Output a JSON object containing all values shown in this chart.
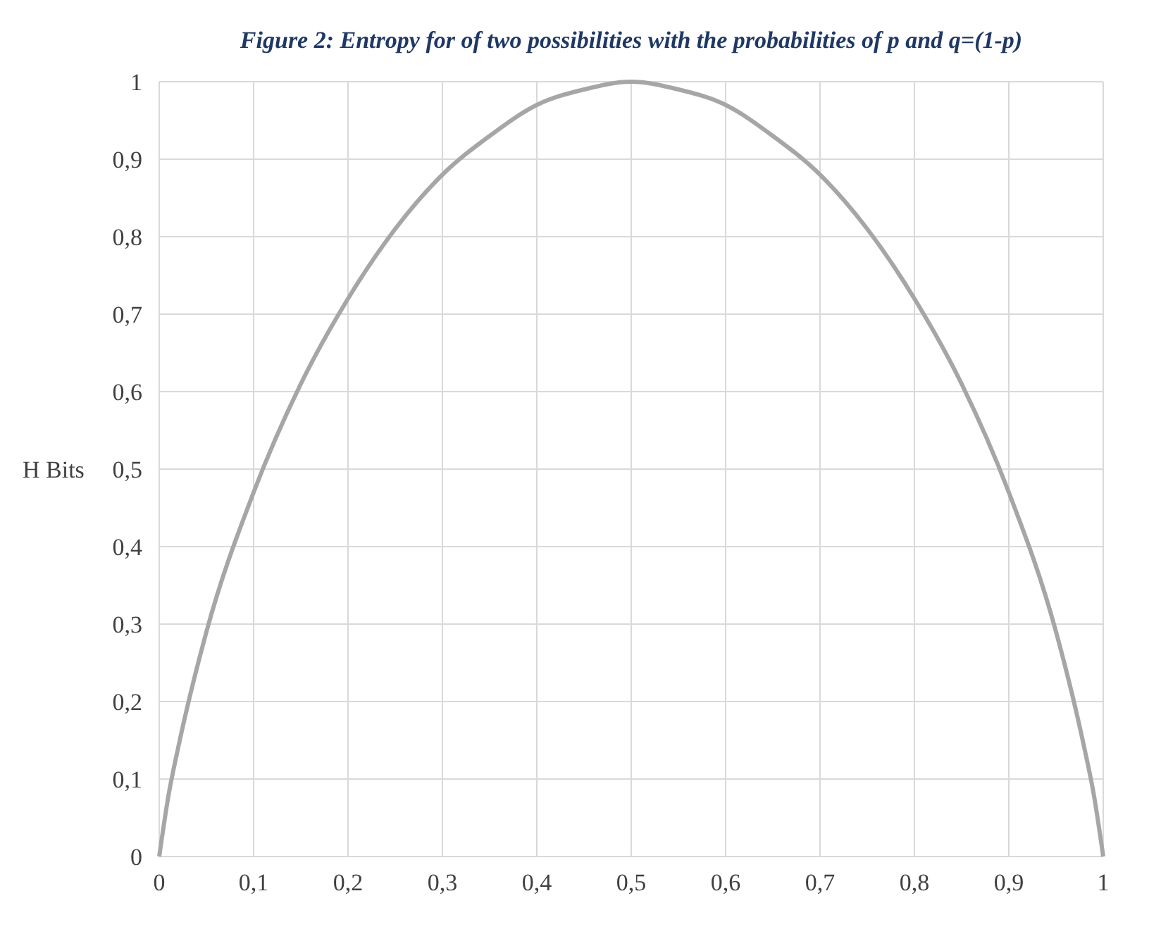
{
  "chart_data": {
    "type": "line",
    "title": "Figure 2: Entropy for of two possibilities with the probabilities of p and q=(1-p)",
    "ylabel": "H Bits",
    "x": [
      0,
      0.01,
      0.02,
      0.05,
      0.1,
      0.15,
      0.2,
      0.25,
      0.3,
      0.35,
      0.4,
      0.45,
      0.5,
      0.55,
      0.6,
      0.65,
      0.7,
      0.75,
      0.8,
      0.85,
      0.9,
      0.95,
      0.98,
      0.99,
      1
    ],
    "series": [
      {
        "color": "#a6a6a6",
        "values": [
          0,
          0.08,
          0.14,
          0.29,
          0.47,
          0.61,
          0.72,
          0.81,
          0.88,
          0.93,
          0.97,
          0.99,
          1,
          0.99,
          0.97,
          0.93,
          0.88,
          0.81,
          0.72,
          0.61,
          0.47,
          0.29,
          0.14,
          0.08,
          0
        ]
      }
    ],
    "xlim": [
      0,
      1
    ],
    "ylim": [
      0,
      1
    ],
    "xticks": [
      0,
      {
        "value": 0.1,
        "label": "0,1"
      },
      {
        "value": 0.2,
        "label": "0,2"
      },
      {
        "value": 0.3,
        "label": "0,3"
      },
      {
        "value": 0.4,
        "label": "0,4"
      },
      {
        "value": 0.5,
        "label": "0,5"
      },
      {
        "value": 0.6,
        "label": "0,6"
      },
      {
        "value": 0.7,
        "label": "0,7"
      },
      {
        "value": 0.8,
        "label": "0,8"
      },
      {
        "value": 0.9,
        "label": "0,9"
      },
      1
    ],
    "yticks": [
      0,
      {
        "value": 0.1,
        "label": "0,1"
      },
      {
        "value": 0.2,
        "label": "0,2"
      },
      {
        "value": 0.3,
        "label": "0,3"
      },
      {
        "value": 0.4,
        "label": "0,4"
      },
      {
        "value": 0.5,
        "label": "0,5"
      },
      {
        "value": 0.6,
        "label": "0,6"
      },
      {
        "value": 0.7,
        "label": "0,7"
      },
      {
        "value": 0.8,
        "label": "0,8"
      },
      {
        "value": 0.9,
        "label": "0,9"
      },
      1
    ],
    "grid": true,
    "marker": "none",
    "line_style": "solid"
  }
}
